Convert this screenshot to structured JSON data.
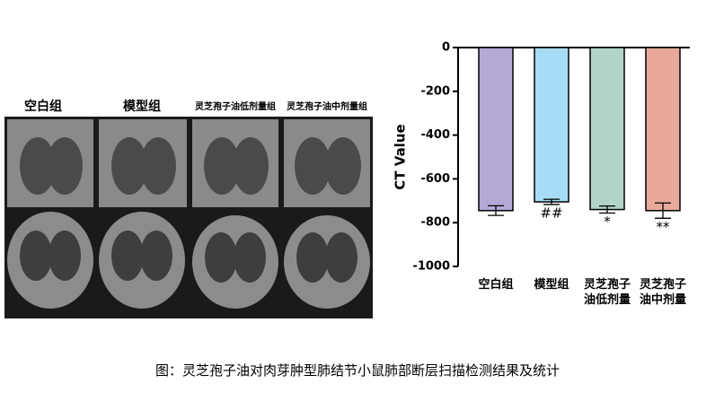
{
  "image_panel": {
    "labels": [
      "空白组",
      "模型组",
      "灵芝孢子油低剂量组",
      "灵芝孢子油中剂量组"
    ]
  },
  "chart_data": {
    "type": "bar",
    "ylabel": "CT Value",
    "categories": [
      "空白组",
      "模型组",
      "灵芝孢子油低剂量",
      "灵芝孢子油中剂量"
    ],
    "values": [
      -745,
      -705,
      -740,
      -745
    ],
    "errors": [
      22,
      12,
      16,
      35
    ],
    "annotations": [
      null,
      "##",
      "*",
      "**"
    ],
    "colors": [
      "#b3a8d6",
      "#a6dcf5",
      "#b2d3c8",
      "#e8a99b"
    ],
    "ylim": [
      -1000,
      0
    ],
    "yticks": [
      0,
      -200,
      -400,
      -600,
      -800,
      -1000
    ]
  },
  "caption": "图：灵芝孢子油对肉芽肿型肺结节小鼠肺部断层扫描检测结果及统计"
}
